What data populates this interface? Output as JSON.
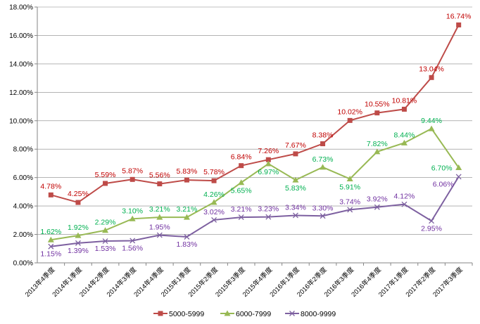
{
  "chart_data": {
    "type": "line",
    "title": "",
    "xlabel": "",
    "ylabel": "",
    "ylim": [
      0,
      18
    ],
    "yticks": [
      "0.00%",
      "2.00%",
      "4.00%",
      "6.00%",
      "8.00%",
      "10.00%",
      "12.00%",
      "14.00%",
      "16.00%",
      "18.00%"
    ],
    "grid": true,
    "legend_position": "bottom",
    "categories": [
      "2013年4季度",
      "2014年1季度",
      "2014年2季度",
      "2014年3季度",
      "2014年4季度",
      "2015年1季度",
      "2015年2季度",
      "2015年3季度",
      "2015年4季度",
      "2016年1季度",
      "2016年2季度",
      "2016年3季度",
      "2016年4季度",
      "2017年1季度",
      "2017年2季度",
      "2017年3季度"
    ],
    "series": [
      {
        "name": "5000-5999",
        "color": "#be4b48",
        "label_color": "#c00000",
        "marker": "square",
        "values": [
          4.78,
          4.25,
          5.59,
          5.87,
          5.56,
          5.83,
          5.78,
          6.84,
          7.26,
          7.67,
          8.38,
          10.02,
          10.55,
          10.81,
          13.04,
          16.74
        ]
      },
      {
        "name": "6000-7999",
        "color": "#98b954",
        "label_color": "#00b050",
        "marker": "triangle",
        "values": [
          1.62,
          1.92,
          2.29,
          3.1,
          3.21,
          3.21,
          4.26,
          5.65,
          6.97,
          5.83,
          6.73,
          5.91,
          7.82,
          8.44,
          9.44,
          6.7
        ]
      },
      {
        "name": "8000-9999",
        "color": "#7d60a0",
        "label_color": "#7030a0",
        "marker": "x",
        "values": [
          1.15,
          1.39,
          1.53,
          1.56,
          1.95,
          1.83,
          3.02,
          3.21,
          3.23,
          3.34,
          3.3,
          3.74,
          3.92,
          4.12,
          2.95,
          6.06
        ]
      }
    ]
  }
}
